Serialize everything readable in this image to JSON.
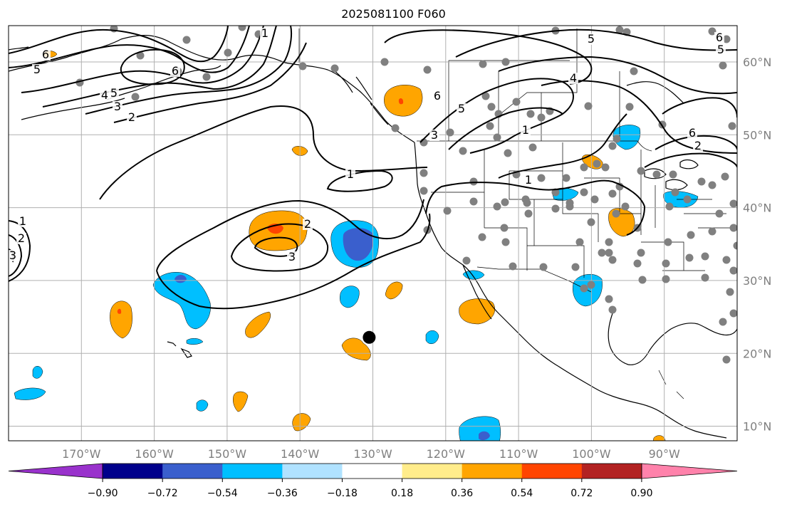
{
  "title": "2025081100 F060",
  "map": {
    "lon_range": [
      -180,
      -80
    ],
    "lat_range": [
      8,
      65
    ],
    "lon_ticks": [
      "170°W",
      "160°W",
      "150°W",
      "140°W",
      "130°W",
      "120°W",
      "110°W",
      "100°W",
      "90°W"
    ],
    "lat_ticks": [
      "10°N",
      "20°N",
      "30°N",
      "40°N",
      "50°N",
      "60°N"
    ],
    "grid": true,
    "contour_labels": [
      "6",
      "5",
      "4",
      "5",
      "3",
      "2",
      "6",
      "5",
      "1",
      "3",
      "6",
      "1",
      "1",
      "2",
      "3",
      "1",
      "2",
      "3",
      "1",
      "6",
      "5",
      "5",
      "6",
      "2",
      "4"
    ],
    "marker": {
      "name": "storm-center-marker",
      "lon": -130.5,
      "lat": 22.2,
      "color": "#000000"
    },
    "station_color": "#808080"
  },
  "colorbar": {
    "ticks": [
      "−0.90",
      "−0.72",
      "−0.54",
      "−0.36",
      "−0.18",
      "0.18",
      "0.36",
      "0.54",
      "0.72",
      "0.90"
    ],
    "colors": [
      "#9932cc",
      "#00008b",
      "#3a5fcd",
      "#00bfff",
      "#b0e2ff",
      "#ffffff",
      "#ffec8b",
      "#ffa500",
      "#ff4500",
      "#b22222",
      "#ff82ab"
    ]
  },
  "legend_colors": {
    "orange": "#ffa500",
    "red": "#ff4500",
    "cyan": "#00bfff",
    "blue": "#3a5fcd",
    "land": "#ffffff",
    "contour": "#000000"
  }
}
